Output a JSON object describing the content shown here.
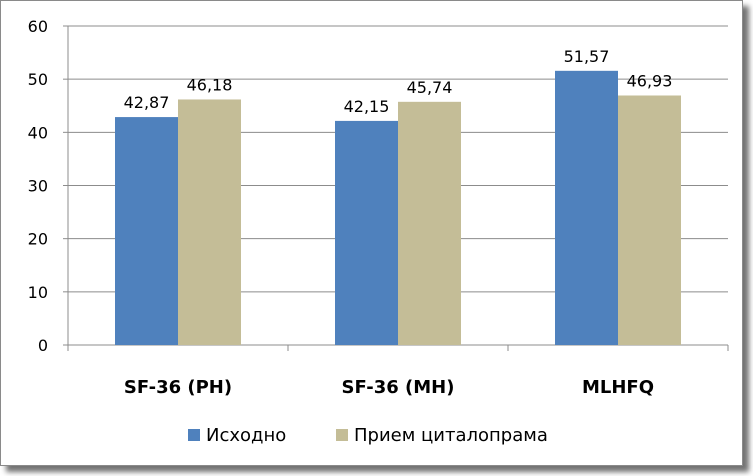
{
  "chart_data": {
    "type": "bar",
    "categories": [
      "SF-36 (PH)",
      "SF-36 (MH)",
      "MLHFQ"
    ],
    "series": [
      {
        "name": "Исходно",
        "values": [
          42.87,
          42.15,
          51.57
        ],
        "labels": [
          "42,87",
          "42,15",
          "51,57"
        ],
        "color": "#4f81bd"
      },
      {
        "name": "Прием циталопрама",
        "values": [
          46.18,
          45.74,
          46.93
        ],
        "labels": [
          "46,18",
          "45,74",
          "46,93"
        ],
        "color": "#c4bd97"
      }
    ],
    "ylim": [
      0,
      60
    ],
    "yticks": [
      "0",
      "10",
      "20",
      "30",
      "40",
      "50",
      "60"
    ],
    "grid": true,
    "legend": "bottom"
  }
}
